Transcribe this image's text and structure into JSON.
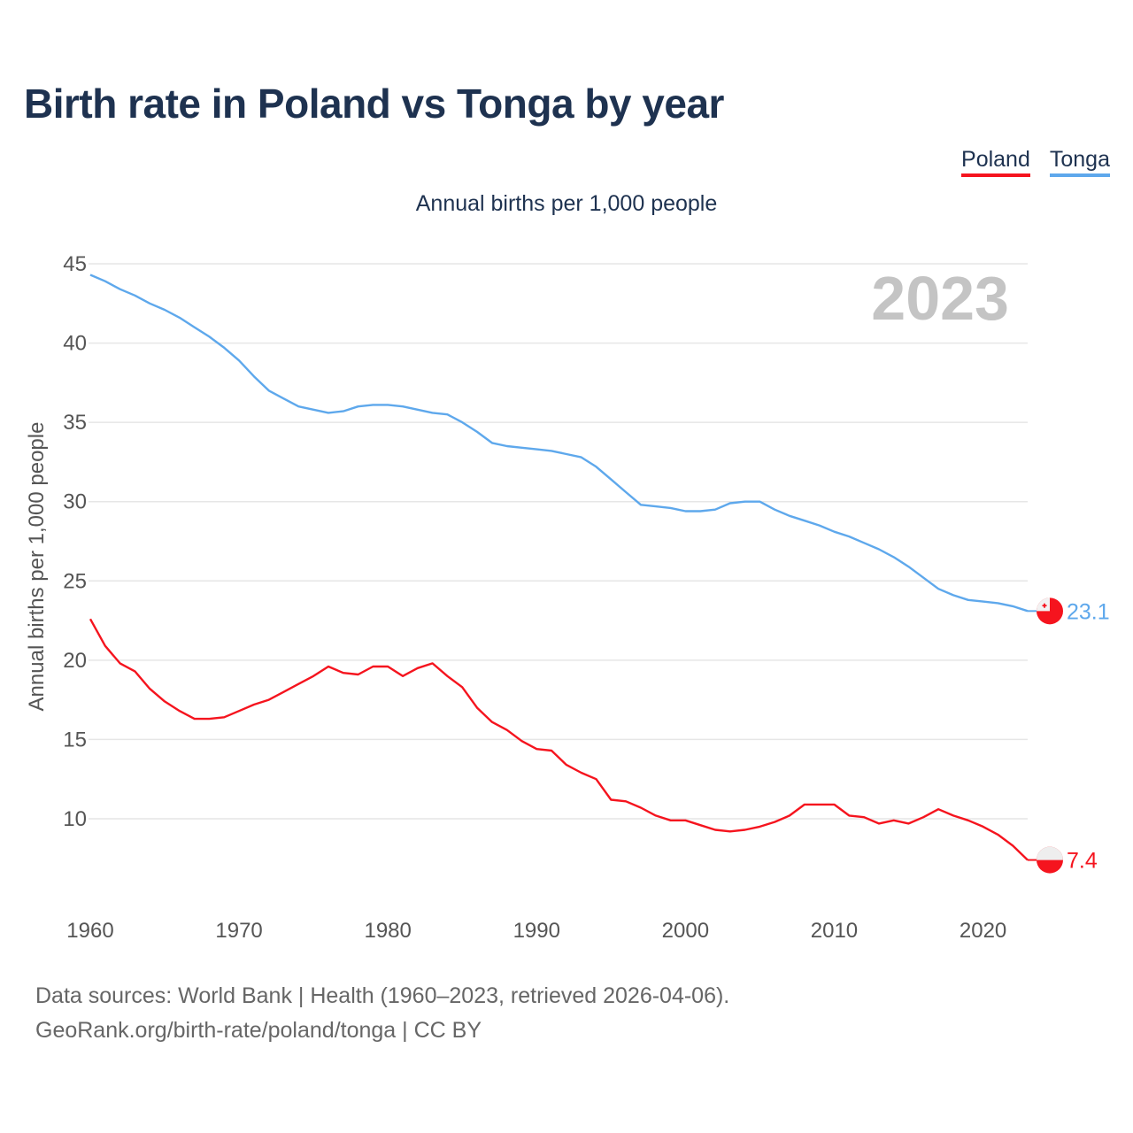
{
  "chart_data": {
    "type": "line",
    "title": "Birth rate in Poland vs Tonga by year",
    "subtitle": "Annual births per 1,000 people",
    "ylabel": "Annual births per 1,000 people",
    "xlabel": "",
    "ylim": [
      5,
      45
    ],
    "xlim": [
      1960,
      2023
    ],
    "yticks": [
      "10",
      "15",
      "20",
      "25",
      "30",
      "35",
      "40",
      "45"
    ],
    "xticks": [
      "1960",
      "1970",
      "1980",
      "1990",
      "2000",
      "2010",
      "2020"
    ],
    "grid": true,
    "legend_position": "top-right",
    "year_label": "2023",
    "x_start": 1960,
    "series": [
      {
        "name": "Poland",
        "color": "#f5141e",
        "end_label": "7.4",
        "values": [
          22.6,
          20.9,
          19.8,
          19.3,
          18.2,
          17.4,
          16.8,
          16.3,
          16.3,
          16.4,
          16.8,
          17.2,
          17.5,
          18.0,
          18.5,
          19.0,
          19.6,
          19.2,
          19.1,
          19.6,
          19.6,
          19.0,
          19.5,
          19.8,
          19.0,
          18.3,
          17.0,
          16.1,
          15.6,
          14.9,
          14.4,
          14.3,
          13.4,
          12.9,
          12.5,
          11.2,
          11.1,
          10.7,
          10.2,
          9.9,
          9.9,
          9.6,
          9.3,
          9.2,
          9.3,
          9.5,
          9.8,
          10.2,
          10.9,
          10.9,
          10.9,
          10.2,
          10.1,
          9.7,
          9.9,
          9.7,
          10.1,
          10.6,
          10.2,
          9.9,
          9.5,
          9.0,
          8.3,
          7.4
        ]
      },
      {
        "name": "Tonga",
        "color": "#5ea8ec",
        "end_label": "23.1",
        "values": [
          44.3,
          43.9,
          43.4,
          43.0,
          42.5,
          42.1,
          41.6,
          41.0,
          40.4,
          39.7,
          38.9,
          37.9,
          37.0,
          36.5,
          36.0,
          35.8,
          35.6,
          35.7,
          36.0,
          36.1,
          36.1,
          36.0,
          35.8,
          35.6,
          35.5,
          35.0,
          34.4,
          33.7,
          33.5,
          33.4,
          33.3,
          33.2,
          33.0,
          32.8,
          32.2,
          31.4,
          30.6,
          29.8,
          29.7,
          29.6,
          29.4,
          29.4,
          29.5,
          29.9,
          30.0,
          30.0,
          29.5,
          29.1,
          28.8,
          28.5,
          28.1,
          27.8,
          27.4,
          27.0,
          26.5,
          25.9,
          25.2,
          24.5,
          24.1,
          23.8,
          23.7,
          23.6,
          23.4,
          23.1
        ]
      }
    ]
  },
  "source": {
    "line1": "Data sources: World Bank | Health (1960–2023, retrieved 2026-04-06).",
    "line2": "GeoRank.org/birth-rate/poland/tonga | CC BY"
  }
}
